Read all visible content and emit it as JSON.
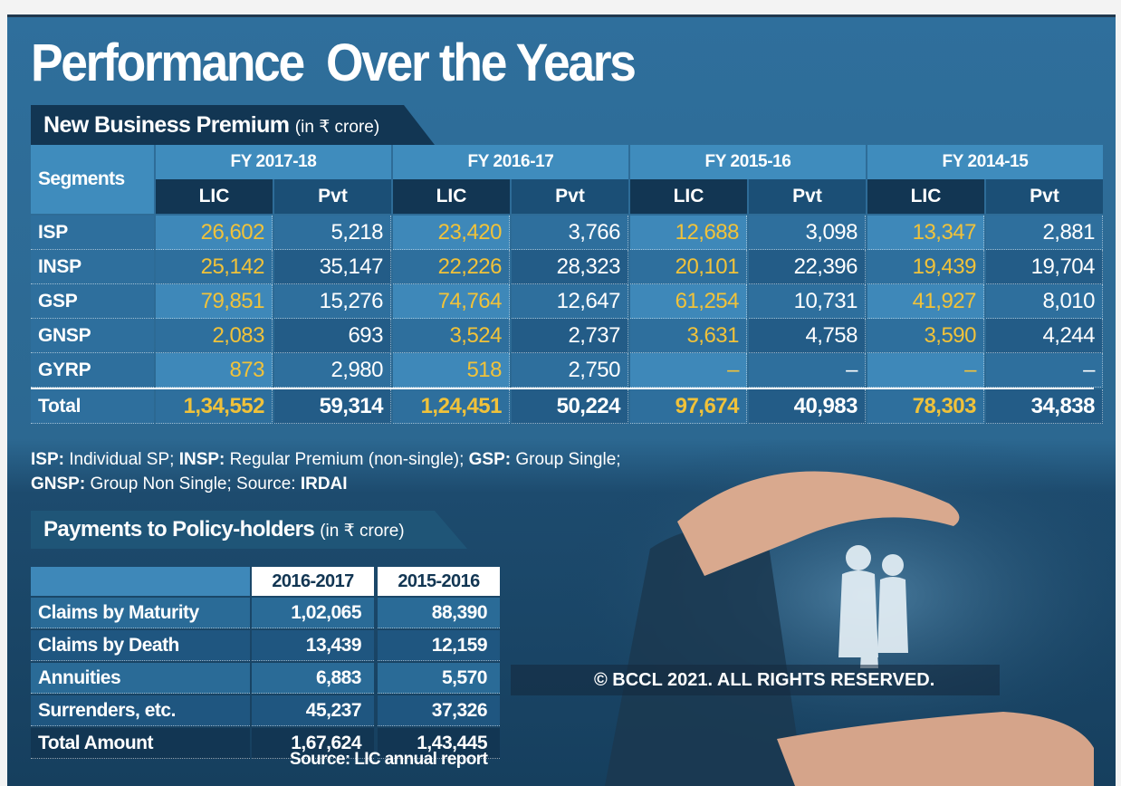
{
  "title": "Performance  Over the Years",
  "business": {
    "heading": "New Business Premium",
    "unit": "(in ₹ crore)",
    "segments_label": "Segments",
    "col_lic": "LIC",
    "col_pvt": "Pvt",
    "years": [
      "FY 2017-18",
      "FY 2016-17",
      "FY 2015-16",
      "FY 2014-15"
    ],
    "rows": [
      {
        "name": "ISP",
        "v": [
          "26,602",
          "5,218",
          "23,420",
          "3,766",
          "12,688",
          "3,098",
          "13,347",
          "2,881"
        ]
      },
      {
        "name": "INSP",
        "v": [
          "25,142",
          "35,147",
          "22,226",
          "28,323",
          "20,101",
          "22,396",
          "19,439",
          "19,704"
        ]
      },
      {
        "name": "GSP",
        "v": [
          "79,851",
          "15,276",
          "74,764",
          "12,647",
          "61,254",
          "10,731",
          "41,927",
          "8,010"
        ]
      },
      {
        "name": "GNSP",
        "v": [
          "2,083",
          "693",
          "3,524",
          "2,737",
          "3,631",
          "4,758",
          "3,590",
          "4,244"
        ]
      },
      {
        "name": "GYRP",
        "v": [
          "873",
          "2,980",
          "518",
          "2,750",
          "–",
          "–",
          "–",
          "–"
        ]
      },
      {
        "name": "Total",
        "v": [
          "1,34,552",
          "59,314",
          "1,24,451",
          "50,224",
          "97,674",
          "40,983",
          "78,303",
          "34,838"
        ]
      }
    ],
    "footnote_line1": [
      {
        "bold": "ISP:",
        "text": " Individual SP;  "
      },
      {
        "bold": "INSP:",
        "text": " Regular Premium (non-single);  "
      },
      {
        "bold": "GSP:",
        "text": " Group Single;"
      }
    ],
    "footnote_line2": [
      {
        "bold": "GNSP:",
        "text": " Group Non Single;  Source: "
      },
      {
        "bold": "IRDAI",
        "text": ""
      }
    ]
  },
  "payments": {
    "heading": "Payments to Policy-holders",
    "unit": "(in ₹ crore)",
    "years": [
      "2016-2017",
      "2015-2016"
    ],
    "rows": [
      {
        "label": "Claims by Maturity",
        "v": [
          "1,02,065",
          "88,390"
        ]
      },
      {
        "label": "Claims by Death",
        "v": [
          "13,439",
          "12,159"
        ]
      },
      {
        "label": "Annuities",
        "v": [
          "6,883",
          "5,570"
        ]
      },
      {
        "label": "Surrenders, etc.",
        "v": [
          "45,237",
          "37,326"
        ]
      },
      {
        "label": "Total Amount",
        "v": [
          "1,67,624",
          "1,43,445"
        ]
      }
    ],
    "source": "Source: LIC annual report"
  },
  "copyright": "© BCCL 2021. ALL RIGHTS RESERVED.",
  "colors": {
    "lic": "#f0c23a",
    "pvt": "#ffffff",
    "panel": "#2f6f9c",
    "header": "#123653"
  },
  "chart_data": [
    {
      "type": "table",
      "title": "New Business Premium (in ₹ crore)",
      "columns": [
        "FY 2017-18 LIC",
        "FY 2017-18 Pvt",
        "FY 2016-17 LIC",
        "FY 2016-17 Pvt",
        "FY 2015-16 LIC",
        "FY 2015-16 Pvt",
        "FY 2014-15 LIC",
        "FY 2014-15 Pvt"
      ],
      "categories": [
        "ISP",
        "INSP",
        "GSP",
        "GNSP",
        "GYRP",
        "Total"
      ],
      "series": [
        {
          "name": "FY 2017-18 LIC",
          "values": [
            26602,
            25142,
            79851,
            2083,
            873,
            134552
          ]
        },
        {
          "name": "FY 2017-18 Pvt",
          "values": [
            5218,
            35147,
            15276,
            693,
            2980,
            59314
          ]
        },
        {
          "name": "FY 2016-17 LIC",
          "values": [
            23420,
            22226,
            74764,
            3524,
            518,
            124451
          ]
        },
        {
          "name": "FY 2016-17 Pvt",
          "values": [
            3766,
            28323,
            12647,
            2737,
            2750,
            50224
          ]
        },
        {
          "name": "FY 2015-16 LIC",
          "values": [
            12688,
            20101,
            61254,
            3631,
            null,
            97674
          ]
        },
        {
          "name": "FY 2015-16 Pvt",
          "values": [
            3098,
            22396,
            10731,
            4758,
            null,
            40983
          ]
        },
        {
          "name": "FY 2014-15 LIC",
          "values": [
            13347,
            19439,
            41927,
            3590,
            null,
            78303
          ]
        },
        {
          "name": "FY 2014-15 Pvt",
          "values": [
            2881,
            19704,
            8010,
            4244,
            null,
            34838
          ]
        }
      ]
    },
    {
      "type": "table",
      "title": "Payments to Policy-holders (in ₹ crore)",
      "categories": [
        "Claims by Maturity",
        "Claims by Death",
        "Annuities",
        "Surrenders, etc.",
        "Total Amount"
      ],
      "series": [
        {
          "name": "2016-2017",
          "values": [
            102065,
            13439,
            6883,
            45237,
            167624
          ]
        },
        {
          "name": "2015-2016",
          "values": [
            88390,
            12159,
            5570,
            37326,
            143445
          ]
        }
      ]
    }
  ]
}
